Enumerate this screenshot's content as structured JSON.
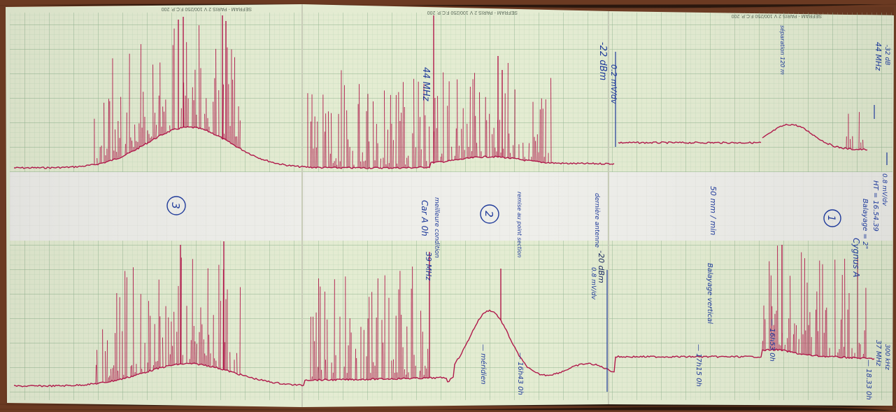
{
  "headers": {
    "left": "SEFRAM - PARIS   2 V 100/250 F.C.P. 200",
    "middle": "SEFRAM - PARIS   2 V 100/250 F.C.P. 200",
    "right": "SEFRAM - PARIS   2 V 100/250 F.C.P. 200"
  },
  "labels": {
    "circle_3": "3",
    "circle_2": "2",
    "circle_1": "1",
    "freq_44": "44 MHz",
    "dbm_top": "-22 dBm",
    "scale_top": "0.2 mV/dv",
    "car_a": "Car A  0h",
    "meilleure": "meilleure condition",
    "freq_39": "39 MHz",
    "freq_20": "-20 dBm",
    "scale_mid": "0.8 mV/dv",
    "derniere": "dernière antenne",
    "remise": "remise au point section",
    "vitesse": "50 mm / min",
    "balayage": "Balayage vertical",
    "heure": "HT = 16.54.39",
    "balayage_val": "Balayage = 2\"",
    "cygnus": "Cygnus A",
    "scale_right": "0.8 mV/dv",
    "freq_right_top": "44 MHz",
    "dbm_right": "-32 dB",
    "top_right_note": "séparation 120 m",
    "meridien": "— méridien",
    "h1": "— 16h43 0h",
    "h2": "— 17h15 0h",
    "h3": "— 16h53 0h",
    "h4": "— 18.33 0h",
    "freq_bottom_right": "37 MHz",
    "freq_300": "300 kHz"
  },
  "colors": {
    "wood": "#6b3a22",
    "paper": "#e4ecd2",
    "grid": "#a9c9a8",
    "band": "#eeeeea",
    "trace": "#b0184a",
    "ink": "#1f3a9a"
  }
}
